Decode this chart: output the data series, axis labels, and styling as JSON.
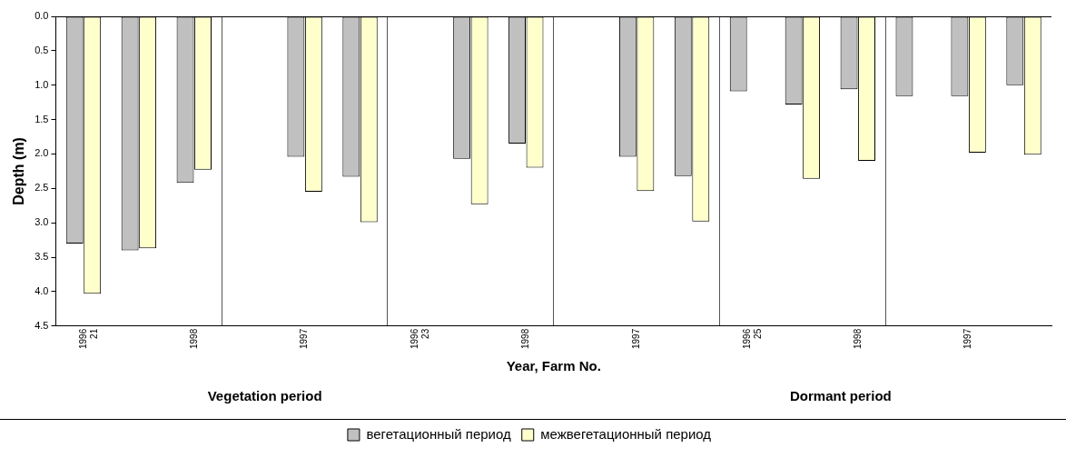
{
  "chart_data": {
    "type": "bar",
    "categories": [
      "1996\n21",
      null,
      "1998",
      null,
      "1997",
      null,
      "1996\n23",
      null,
      "1998",
      null,
      "1997",
      null,
      "1996\n25",
      null,
      "1998",
      null,
      "1997",
      null
    ],
    "series": [
      {
        "name": "вегетационный период",
        "color": "#c0c0c0",
        "values": [
          3.3,
          3.4,
          2.42,
          null,
          2.04,
          2.33,
          null,
          2.07,
          1.85,
          null,
          2.04,
          2.32,
          1.09,
          1.28,
          1.06,
          1.16,
          1.16,
          1.0
        ]
      },
      {
        "name": "межвегетационный период",
        "color": "#ffffcc",
        "values": [
          4.03,
          3.37,
          2.23,
          null,
          2.55,
          2.99,
          null,
          2.73,
          2.2,
          null,
          2.54,
          2.98,
          null,
          2.36,
          2.1,
          null,
          1.98,
          2.01
        ]
      }
    ],
    "ylabel": "Depth (m)",
    "xlabel": "Year, Farm No.",
    "annotations": [
      "Vegetation period",
      "Dormant period"
    ],
    "ylim": [
      4.5,
      0
    ],
    "yticks": [
      {
        "value": 0,
        "label": "0.0"
      },
      {
        "value": 0.5,
        "label": "0.5"
      },
      {
        "value": 1,
        "label": "1.0"
      },
      {
        "value": 1.5,
        "label": "1.5"
      },
      {
        "value": 2,
        "label": "2.0"
      },
      {
        "value": 2.5,
        "label": "2.5"
      },
      {
        "value": 3,
        "label": "3.0"
      },
      {
        "value": 3.5,
        "label": "3.5"
      },
      {
        "value": 4,
        "label": "4.0"
      },
      {
        "value": 4.5,
        "label": "4.5"
      }
    ],
    "grid": "x",
    "legend": "bottom"
  }
}
